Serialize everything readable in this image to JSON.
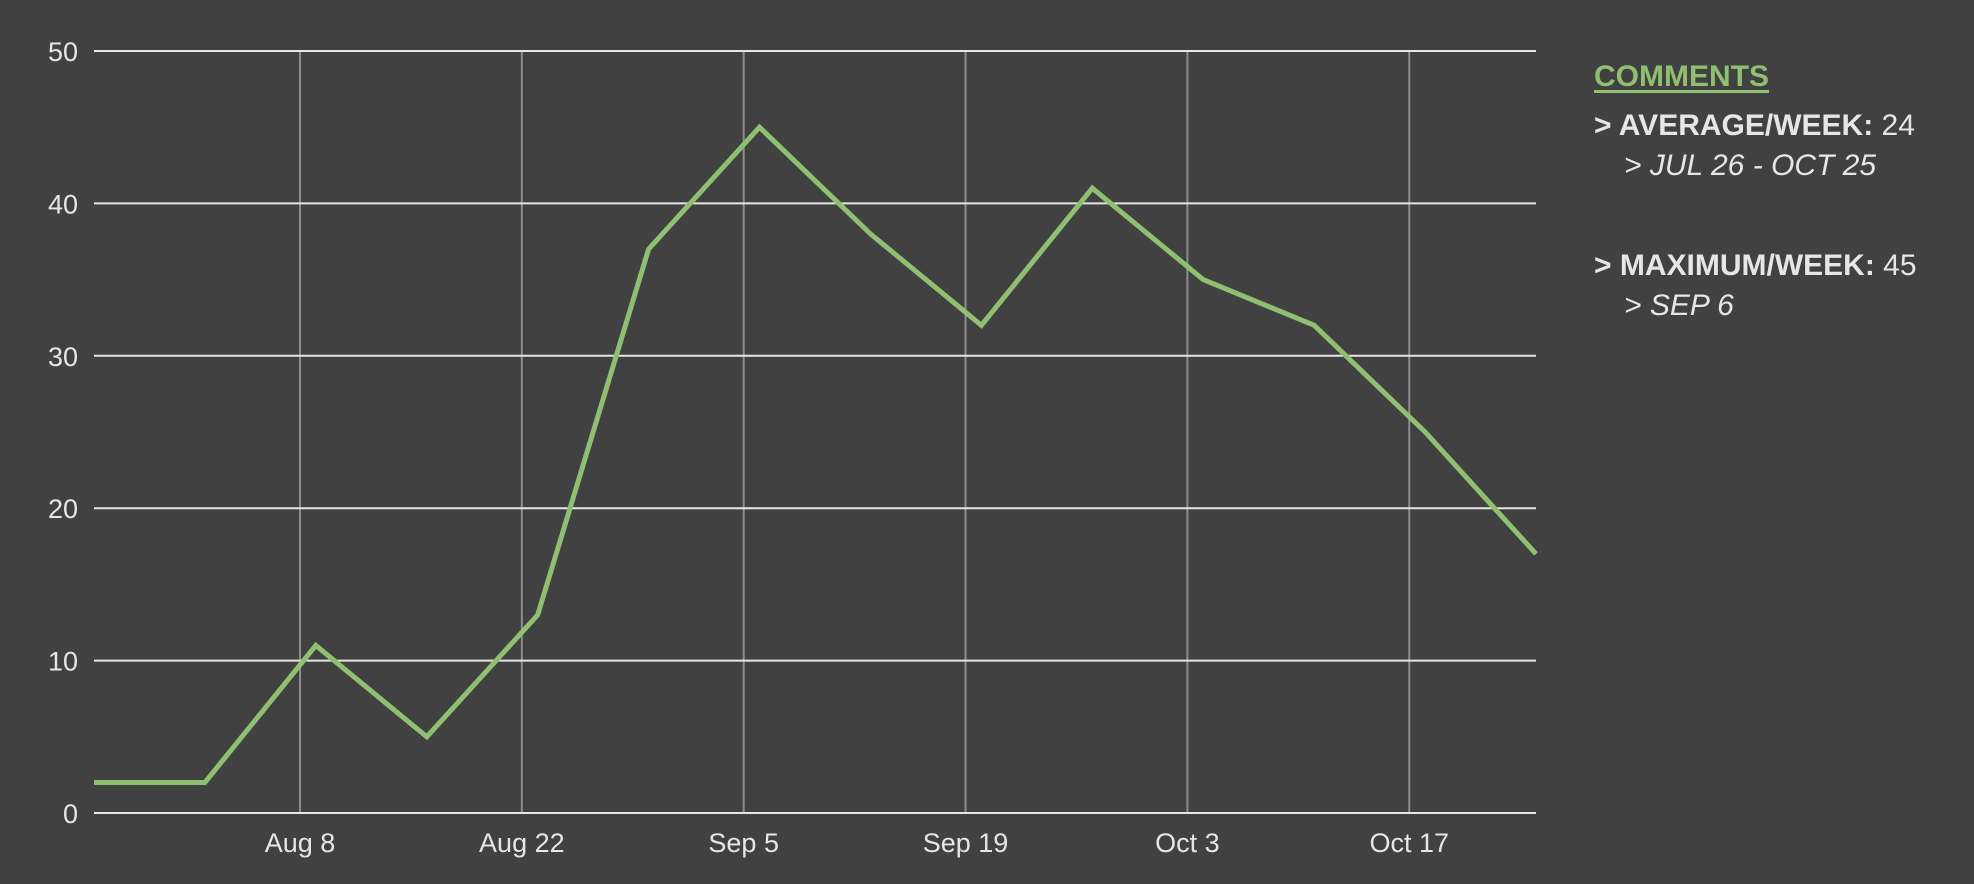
{
  "colors": {
    "background": "#414141",
    "line": "#8fbf70",
    "grid": "#e6e6e6",
    "vgrid": "#8c8c8c",
    "text": "#e6e6e6"
  },
  "sidebar": {
    "title": "COMMENTS",
    "average_label": "> AVERAGE/WEEK:",
    "average_value": "24",
    "average_range": "> JUL 26 - OCT 25",
    "maximum_label": "> MAXIMUM/WEEK:",
    "maximum_value": "45",
    "maximum_date": "> SEP 6"
  },
  "chart_data": {
    "type": "line",
    "title": "",
    "xlabel": "",
    "ylabel": "",
    "ylim": [
      0,
      50
    ],
    "yticks": [
      0,
      10,
      20,
      30,
      40,
      50
    ],
    "xlim": [
      "2021-07-26",
      "2021-10-25"
    ],
    "xticks": [
      {
        "label": "Aug 8",
        "date": "2021-08-08"
      },
      {
        "label": "Aug 22",
        "date": "2021-08-22"
      },
      {
        "label": "Sep 5",
        "date": "2021-09-05"
      },
      {
        "label": "Sep 19",
        "date": "2021-09-19"
      },
      {
        "label": "Oct 3",
        "date": "2021-10-03"
      },
      {
        "label": "Oct 17",
        "date": "2021-10-17"
      }
    ],
    "grid": true,
    "series": [
      {
        "x": [
          "2021-07-26",
          "2021-08-02",
          "2021-08-09",
          "2021-08-16",
          "2021-08-23",
          "2021-08-30",
          "2021-09-06",
          "2021-09-13",
          "2021-09-20",
          "2021-09-27",
          "2021-10-04",
          "2021-10-11",
          "2021-10-18",
          "2021-10-25"
        ],
        "values": [
          2,
          2,
          11,
          5,
          13,
          37,
          45,
          38,
          32,
          41,
          35,
          32,
          25,
          17
        ]
      }
    ]
  }
}
